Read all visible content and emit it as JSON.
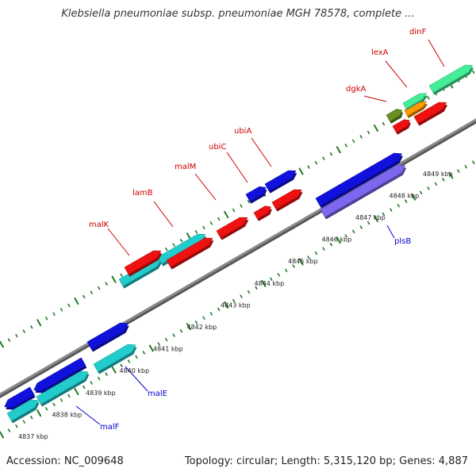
{
  "title": "Klebsiella pneumoniae subsp. pneumoniae MGH 78578, complete ...",
  "footer": {
    "accession": "Accession: NC_009648",
    "stats": "Topology: circular; Length: 5,315,120 bp; Genes: 4,887"
  },
  "colors": {
    "backbone": "#8a8a8a",
    "tick": "#1f7a1f",
    "tick_label": "#222222",
    "label_red": "#cc0000",
    "label_blue": "#0000cc",
    "red_gene": "#ee1111",
    "blue_gene": "#1111dd",
    "cyan_gene": "#22cccc",
    "green_gene": "#44ee99",
    "olive_gene": "#6b8e23",
    "orange_gene": "#ff9900",
    "lavender_gene": "#7b68ee"
  },
  "kbp_labels": [
    "4837 kbp",
    "4838 kbp",
    "4839 kbp",
    "4840 kbp",
    "4841 kbp",
    "4842 kbp",
    "4843 kbp",
    "4844 kbp",
    "4845 kbp",
    "4846 kbp",
    "4847 kbp",
    "4848 kbp",
    "4849 kbp"
  ],
  "gene_labels": [
    {
      "text": "malK",
      "color": "red"
    },
    {
      "text": "lamB",
      "color": "red"
    },
    {
      "text": "malM",
      "color": "red"
    },
    {
      "text": "ubiC",
      "color": "red"
    },
    {
      "text": "ubiA",
      "color": "red"
    },
    {
      "text": "dgkA",
      "color": "red"
    },
    {
      "text": "lexA",
      "color": "red"
    },
    {
      "text": "dinF",
      "color": "red"
    },
    {
      "text": "plsB",
      "color": "blue"
    },
    {
      "text": "malE",
      "color": "blue"
    },
    {
      "text": "malF",
      "color": "blue"
    }
  ]
}
